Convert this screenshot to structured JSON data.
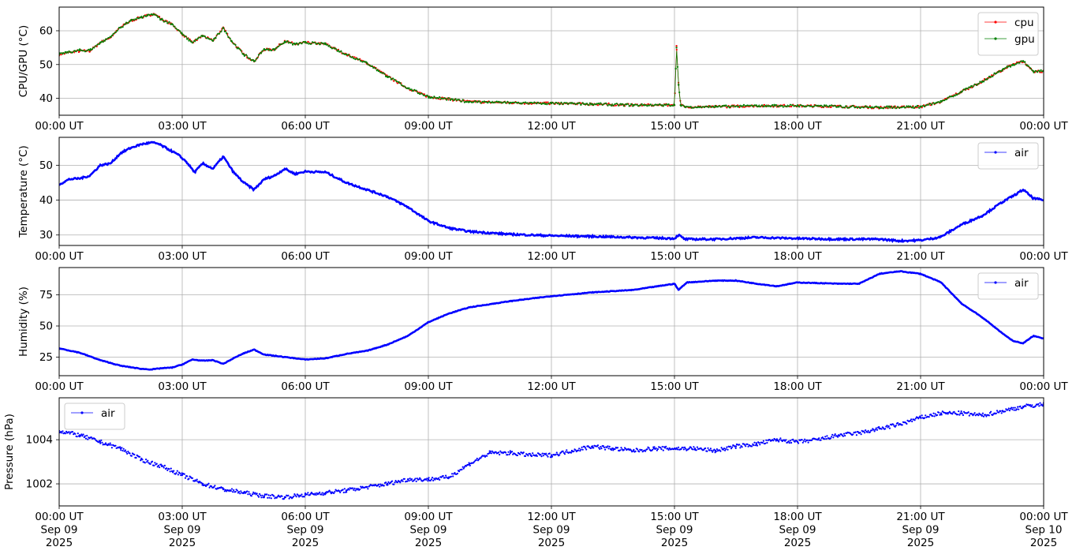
{
  "chart_data": [
    {
      "type": "line",
      "ylabel": "CPU/GPU (°C)",
      "xlim": [
        0,
        24
      ],
      "ylim": [
        35,
        67
      ],
      "yticks": [
        40,
        50,
        60
      ],
      "xticklabels": [
        "00:00 UT",
        "03:00 UT",
        "06:00 UT",
        "09:00 UT",
        "12:00 UT",
        "15:00 UT",
        "18:00 UT",
        "21:00 UT",
        "00:00 UT"
      ],
      "grid": true,
      "legend_position": "upper right",
      "series": [
        {
          "name": "cpu",
          "color": "#ff0000",
          "x": [
            0,
            0.5,
            0.75,
            1.0,
            1.25,
            1.5,
            1.75,
            2.0,
            2.15,
            2.3,
            2.5,
            2.75,
            3.0,
            3.25,
            3.5,
            3.75,
            4.0,
            4.2,
            4.5,
            4.75,
            5.0,
            5.25,
            5.5,
            5.75,
            6.0,
            6.5,
            7.0,
            7.5,
            8.0,
            8.5,
            9.0,
            10.0,
            11.0,
            12.0,
            13.0,
            14.0,
            15.0,
            15.05,
            15.1,
            15.15,
            15.25,
            16.0,
            17.0,
            18.0,
            19.0,
            20.0,
            21.0,
            21.5,
            22.0,
            22.5,
            23.0,
            23.25,
            23.5,
            23.75,
            24.0
          ],
          "y": [
            53,
            54,
            54,
            56.5,
            58,
            61,
            63,
            64,
            64.5,
            65,
            63.5,
            62,
            59,
            56.5,
            58.5,
            57,
            61,
            57,
            53,
            51,
            54.5,
            54.5,
            57,
            56,
            56.5,
            56,
            53,
            50.5,
            46.5,
            43,
            40.5,
            39,
            38.7,
            38.5,
            38.3,
            38,
            38,
            55.5,
            44,
            38,
            37.5,
            37.5,
            37.8,
            37.8,
            37.6,
            37.3,
            37.5,
            39,
            42,
            45,
            48.5,
            50,
            51,
            48,
            48
          ]
        },
        {
          "name": "gpu",
          "color": "#008000",
          "x": [
            0,
            0.5,
            0.75,
            1.0,
            1.25,
            1.5,
            1.75,
            2.0,
            2.15,
            2.3,
            2.5,
            2.75,
            3.0,
            3.25,
            3.5,
            3.75,
            4.0,
            4.2,
            4.5,
            4.75,
            5.0,
            5.25,
            5.5,
            5.75,
            6.0,
            6.5,
            7.0,
            7.5,
            8.0,
            8.5,
            9.0,
            10.0,
            11.0,
            12.0,
            13.0,
            14.0,
            15.0,
            15.05,
            15.1,
            15.15,
            15.25,
            16.0,
            17.0,
            18.0,
            19.0,
            20.0,
            21.0,
            21.5,
            22.0,
            22.5,
            23.0,
            23.25,
            23.5,
            23.75,
            24.0
          ],
          "y": [
            53,
            54.2,
            54.2,
            56.5,
            58.2,
            61,
            63,
            64,
            64.5,
            64.8,
            63.3,
            62,
            59,
            56.5,
            58.5,
            57,
            60.8,
            57,
            53,
            51,
            54.5,
            54.5,
            56.8,
            56,
            56.5,
            56,
            53,
            50.5,
            46.5,
            43,
            40.5,
            39,
            38.7,
            38.5,
            38.3,
            38,
            38,
            55,
            44,
            38,
            37.5,
            37.5,
            37.8,
            37.8,
            37.6,
            37.3,
            37.5,
            39,
            42,
            45,
            48.5,
            50,
            51,
            48,
            48
          ]
        }
      ]
    },
    {
      "type": "line",
      "ylabel": "Temperature (°C)",
      "xlim": [
        0,
        24
      ],
      "ylim": [
        27,
        58
      ],
      "yticks": [
        30,
        40,
        50
      ],
      "xticklabels": [
        "00:00 UT",
        "03:00 UT",
        "06:00 UT",
        "09:00 UT",
        "12:00 UT",
        "15:00 UT",
        "18:00 UT",
        "21:00 UT",
        "00:00 UT"
      ],
      "grid": true,
      "legend_position": "upper right",
      "series": [
        {
          "name": "air",
          "color": "#0000ff",
          "x": [
            0,
            0.25,
            0.5,
            0.75,
            1.0,
            1.25,
            1.5,
            1.75,
            2.0,
            2.25,
            2.4,
            2.6,
            2.9,
            3.1,
            3.3,
            3.5,
            3.75,
            4.0,
            4.25,
            4.5,
            4.75,
            5.0,
            5.25,
            5.5,
            5.75,
            6.0,
            6.5,
            7.0,
            7.5,
            8.0,
            8.5,
            9.0,
            9.5,
            10.0,
            11.0,
            12.0,
            13.0,
            14.0,
            15.0,
            15.1,
            15.25,
            16.0,
            17.0,
            18.0,
            19.0,
            20.0,
            20.5,
            21.0,
            21.3,
            21.5,
            22.0,
            22.5,
            23.0,
            23.3,
            23.5,
            23.75,
            24.0
          ],
          "y": [
            44.5,
            46,
            46.2,
            47,
            50,
            50.5,
            53.5,
            55,
            56,
            56.5,
            56.2,
            55,
            53,
            51,
            48,
            50.5,
            49,
            52.5,
            48,
            45,
            43,
            46,
            47,
            49,
            47.5,
            48.2,
            48,
            45,
            43,
            41,
            38,
            34,
            32,
            31,
            30.2,
            29.8,
            29.6,
            29.3,
            29,
            30,
            28.8,
            28.8,
            29.3,
            29,
            28.8,
            28.8,
            28.3,
            28.5,
            29,
            29.5,
            33,
            35.5,
            39.5,
            41.5,
            43,
            40.5,
            40
          ]
        }
      ]
    },
    {
      "type": "line",
      "ylabel": "Humidity (%)",
      "xlim": [
        0,
        24
      ],
      "ylim": [
        10,
        97
      ],
      "yticks": [
        25,
        50,
        75
      ],
      "xticklabels": [
        "00:00 UT",
        "03:00 UT",
        "06:00 UT",
        "09:00 UT",
        "12:00 UT",
        "15:00 UT",
        "18:00 UT",
        "21:00 UT",
        "00:00 UT"
      ],
      "grid": true,
      "legend_position": "upper right",
      "series": [
        {
          "name": "air",
          "color": "#0000ff",
          "x": [
            0,
            0.5,
            1.0,
            1.5,
            2.0,
            2.25,
            2.5,
            2.75,
            3.0,
            3.25,
            3.5,
            3.75,
            4.0,
            4.25,
            4.5,
            4.75,
            5.0,
            5.5,
            6.0,
            6.5,
            7.0,
            7.5,
            8.0,
            8.5,
            9.0,
            9.5,
            10.0,
            11.0,
            12.0,
            13.0,
            14.0,
            15.0,
            15.1,
            15.3,
            16.0,
            16.5,
            17.0,
            17.5,
            18.0,
            19.0,
            19.5,
            20.0,
            20.5,
            21.0,
            21.5,
            22.0,
            22.5,
            23.0,
            23.25,
            23.5,
            23.75,
            24.0
          ],
          "y": [
            32,
            28.5,
            22.5,
            18,
            15.5,
            15,
            16,
            16.5,
            19,
            23,
            22,
            22.5,
            19.5,
            24,
            28,
            31,
            27,
            25,
            23,
            24,
            27.5,
            30,
            35,
            42,
            53,
            60,
            65,
            70,
            74,
            77,
            79,
            84,
            79,
            85,
            86.5,
            86.5,
            84,
            82,
            85,
            84,
            84,
            92,
            94,
            92,
            85,
            68,
            57,
            44,
            38,
            36,
            42,
            40
          ]
        }
      ]
    },
    {
      "type": "scatter",
      "ylabel": "Pressure (hPa)",
      "xlim": [
        0,
        24
      ],
      "ylim": [
        1001.0,
        1005.9
      ],
      "yticks": [
        1002,
        1004
      ],
      "xticklabels": [
        [
          "00:00 UT",
          "Sep 09",
          "2025"
        ],
        [
          "03:00 UT",
          "Sep 09",
          "2025"
        ],
        [
          "06:00 UT",
          "Sep 09",
          "2025"
        ],
        [
          "09:00 UT",
          "Sep 09",
          "2025"
        ],
        [
          "12:00 UT",
          "Sep 09",
          "2025"
        ],
        [
          "15:00 UT",
          "Sep 09",
          "2025"
        ],
        [
          "18:00 UT",
          "Sep 09",
          "2025"
        ],
        [
          "21:00 UT",
          "Sep 09",
          "2025"
        ],
        [
          "00:00 UT",
          "Sep 10",
          "2025"
        ]
      ],
      "grid": true,
      "legend_position": "upper left",
      "series": [
        {
          "name": "air",
          "color": "#0000ff",
          "x": [
            0,
            0.5,
            1.0,
            1.5,
            2.0,
            2.5,
            3.0,
            3.5,
            4.0,
            4.5,
            5.0,
            5.5,
            6.0,
            6.5,
            7.0,
            7.5,
            8.0,
            8.5,
            9.0,
            9.5,
            10.0,
            10.5,
            11.0,
            11.5,
            12.0,
            12.5,
            13.0,
            13.5,
            14.0,
            14.5,
            15.0,
            15.5,
            16.0,
            16.5,
            17.0,
            17.5,
            18.0,
            18.5,
            19.0,
            19.5,
            20.0,
            20.5,
            21.0,
            21.5,
            22.0,
            22.5,
            23.0,
            23.5,
            24.0
          ],
          "y": [
            1004.4,
            1004.2,
            1003.9,
            1003.6,
            1003.1,
            1002.8,
            1002.4,
            1002.0,
            1001.75,
            1001.6,
            1001.45,
            1001.4,
            1001.5,
            1001.6,
            1001.7,
            1001.85,
            1002.0,
            1002.2,
            1002.2,
            1002.3,
            1002.9,
            1003.4,
            1003.4,
            1003.3,
            1003.3,
            1003.5,
            1003.7,
            1003.6,
            1003.5,
            1003.6,
            1003.6,
            1003.6,
            1003.5,
            1003.7,
            1003.8,
            1004.0,
            1003.9,
            1004.0,
            1004.2,
            1004.3,
            1004.5,
            1004.7,
            1005.0,
            1005.2,
            1005.2,
            1005.1,
            1005.3,
            1005.5,
            1005.6
          ]
        }
      ]
    }
  ]
}
